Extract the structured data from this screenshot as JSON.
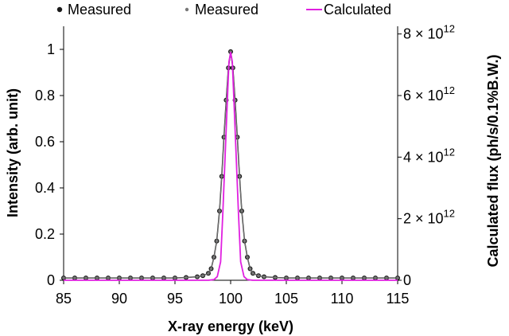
{
  "chart_data": {
    "type": "line",
    "xlabel": "X-ray energy (keV)",
    "ylabel": "Intensity (arb. unit)",
    "ylabel_right": "Calculated flux (ph/s/0.1%B.W.)",
    "xlim": [
      85,
      115
    ],
    "ylim": [
      0,
      1.1
    ],
    "ylim_right": [
      0,
      8250000000000.0
    ],
    "x_ticks": [
      "85",
      "90",
      "95",
      "100",
      "105",
      "110",
      "115"
    ],
    "x_tick_values": [
      85,
      90,
      95,
      100,
      105,
      110,
      115
    ],
    "y_ticks": [
      "0",
      "0.2",
      "0.4",
      "0.6",
      "0.8",
      "1"
    ],
    "y_tick_values": [
      0,
      0.2,
      0.4,
      0.6,
      0.8,
      1.0
    ],
    "y_right_ticks": [
      {
        "mantissa": "0",
        "exponent": "",
        "value": 0
      },
      {
        "mantissa": "2 × 10",
        "exponent": "12",
        "value": 2000000000000.0
      },
      {
        "mantissa": "4 × 10",
        "exponent": "12",
        "value": 4000000000000.0
      },
      {
        "mantissa": "6 × 10",
        "exponent": "12",
        "value": 6000000000000.0
      },
      {
        "mantissa": "8 × 10",
        "exponent": "12",
        "value": 8000000000000.0
      }
    ],
    "legend": {
      "placement": "top",
      "entries": [
        "Measured",
        "Measured",
        "Calculated"
      ]
    },
    "series": [
      {
        "name": "Measured",
        "marker": "large-dot",
        "color": "#1a1a1a",
        "axis": "left",
        "x": [
          85,
          86,
          87,
          88,
          89,
          90,
          91,
          92,
          93,
          94,
          95,
          96,
          97,
          97.5,
          98,
          98.25,
          98.5,
          98.75,
          99,
          99.2,
          99.4,
          99.6,
          99.8,
          100,
          100.2,
          100.4,
          100.6,
          100.8,
          101,
          101.25,
          101.5,
          101.75,
          102,
          102.5,
          103,
          104,
          105,
          106,
          107,
          108,
          109,
          110,
          111,
          112,
          113,
          114,
          115
        ],
        "y": [
          0.01,
          0.01,
          0.01,
          0.01,
          0.01,
          0.01,
          0.01,
          0.01,
          0.01,
          0.01,
          0.01,
          0.012,
          0.015,
          0.02,
          0.03,
          0.05,
          0.1,
          0.17,
          0.3,
          0.45,
          0.62,
          0.78,
          0.92,
          0.99,
          0.92,
          0.78,
          0.62,
          0.45,
          0.3,
          0.17,
          0.1,
          0.05,
          0.03,
          0.02,
          0.015,
          0.012,
          0.01,
          0.01,
          0.01,
          0.01,
          0.01,
          0.01,
          0.01,
          0.01,
          0.01,
          0.01,
          0.01
        ]
      },
      {
        "name": "Measured",
        "marker": "small-dot",
        "color": "#777777",
        "axis": "left",
        "x": [
          85,
          86,
          87,
          88,
          89,
          90,
          91,
          92,
          93,
          94,
          95,
          96,
          97,
          97.5,
          98,
          98.25,
          98.5,
          98.75,
          99,
          99.2,
          99.4,
          99.6,
          99.8,
          100,
          100.2,
          100.4,
          100.6,
          100.8,
          101,
          101.25,
          101.5,
          101.75,
          102,
          102.5,
          103,
          104,
          105,
          106,
          107,
          108,
          109,
          110,
          111,
          112,
          113,
          114,
          115
        ],
        "y": [
          0.01,
          0.01,
          0.01,
          0.01,
          0.01,
          0.01,
          0.01,
          0.01,
          0.01,
          0.01,
          0.01,
          0.012,
          0.015,
          0.02,
          0.03,
          0.05,
          0.1,
          0.17,
          0.3,
          0.45,
          0.62,
          0.78,
          0.92,
          0.99,
          0.92,
          0.78,
          0.62,
          0.45,
          0.3,
          0.17,
          0.1,
          0.05,
          0.03,
          0.02,
          0.015,
          0.012,
          0.01,
          0.01,
          0.01,
          0.01,
          0.01,
          0.01,
          0.01,
          0.01,
          0.01,
          0.01,
          0.01
        ]
      },
      {
        "name": "Calculated",
        "marker": "line",
        "color": "#e020e0",
        "axis": "right",
        "x": [
          85,
          96,
          98,
          98.5,
          98.8,
          99.1,
          99.3,
          99.5,
          99.7,
          99.85,
          100,
          100.15,
          100.3,
          100.5,
          100.7,
          100.9,
          101.2,
          101.5,
          102,
          104,
          115
        ],
        "y": [
          0,
          0,
          0,
          20000000000.0,
          120000000000.0,
          600000000000.0,
          2200000000000.0,
          4000000000000.0,
          5800000000000.0,
          7100000000000.0,
          7400000000000.0,
          7100000000000.0,
          5800000000000.0,
          4000000000000.0,
          2200000000000.0,
          600000000000.0,
          120000000000.0,
          20000000000.0,
          0,
          0,
          0
        ]
      }
    ],
    "grid": false
  }
}
